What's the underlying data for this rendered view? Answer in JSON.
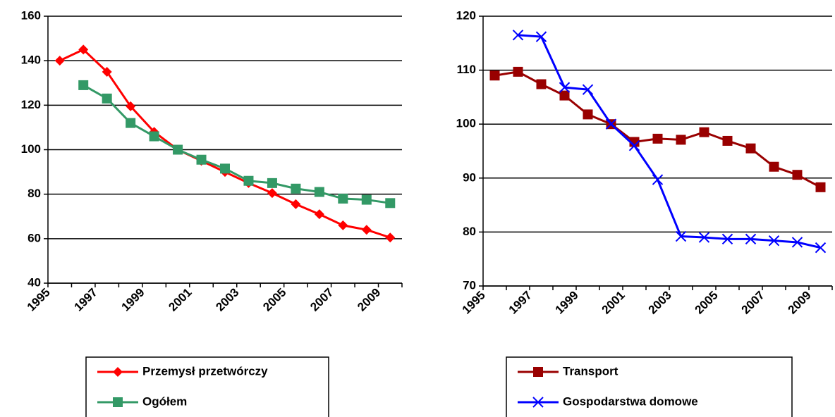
{
  "chart_data": [
    {
      "type": "line",
      "categories": [
        "1995",
        null,
        "1997",
        null,
        "1999",
        null,
        "2001",
        null,
        "2003",
        null,
        "2005",
        null,
        "2007",
        null,
        "2009"
      ],
      "series": [
        {
          "name": "Przemysł przetwórczy",
          "color": "#ff0000",
          "marker": "diamond",
          "values": [
            140,
            145,
            135,
            119.5,
            108,
            100,
            95,
            90,
            85,
            80.5,
            75.5,
            71,
            66,
            64,
            60.5
          ]
        },
        {
          "name": "Ogółem",
          "color": "#339966",
          "marker": "square",
          "values": [
            null,
            129,
            123,
            112,
            106,
            100,
            95.5,
            91.5,
            86,
            85,
            82.5,
            81,
            78,
            77.5,
            76
          ]
        }
      ],
      "ylim": [
        40,
        160
      ],
      "yticks": [
        40,
        60,
        80,
        100,
        120,
        140,
        160
      ],
      "grid": true
    },
    {
      "type": "line",
      "categories": [
        "1995",
        null,
        "1997",
        null,
        "1999",
        null,
        "2001",
        null,
        "2003",
        null,
        "2005",
        null,
        "2007",
        null,
        "2009"
      ],
      "series": [
        {
          "name": "Transport",
          "color": "#990000",
          "marker": "square",
          "values": [
            109,
            109.7,
            107.4,
            105.3,
            101.8,
            100,
            96.7,
            97.3,
            97.1,
            98.5,
            96.9,
            95.5,
            92.1,
            90.6,
            88.3
          ]
        },
        {
          "name": "Gospodarstwa domowe",
          "color": "#0000ff",
          "marker": "x",
          "values": [
            null,
            116.5,
            116.2,
            106.8,
            106.4,
            100,
            96,
            89.7,
            79.2,
            79,
            78.7,
            78.7,
            78.4,
            78.1,
            77.1
          ]
        }
      ],
      "ylim": [
        70,
        120
      ],
      "yticks": [
        70,
        80,
        90,
        100,
        110,
        120
      ],
      "grid": true
    }
  ]
}
